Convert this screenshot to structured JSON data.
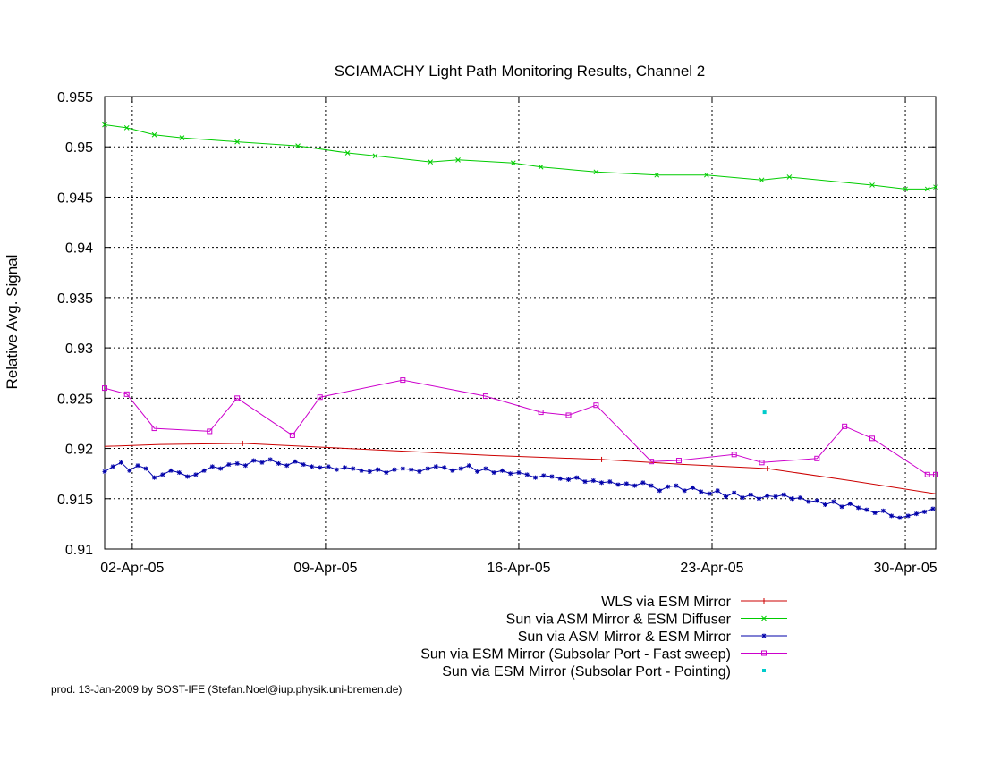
{
  "footer": "prod. 13-Jan-2009 by SOST-IFE (Stefan.Noel@iup.physik.uni-bremen.de)",
  "chart_data": {
    "type": "line",
    "title": "SCIAMACHY Light Path Monitoring Results, Channel 2",
    "xlabel": "",
    "ylabel": "Relative Avg. Signal",
    "x_unit": "date (April 2005, day of month)",
    "xlim": [
      1.0,
      31.1
    ],
    "ylim": [
      0.91,
      0.955
    ],
    "xticks": [
      {
        "value": 2,
        "label": "02-Apr-05"
      },
      {
        "value": 9,
        "label": "09-Apr-05"
      },
      {
        "value": 16,
        "label": "16-Apr-05"
      },
      {
        "value": 23,
        "label": "23-Apr-05"
      },
      {
        "value": 30,
        "label": "30-Apr-05"
      }
    ],
    "yticks": [
      {
        "value": 0.91,
        "label": "0.91"
      },
      {
        "value": 0.915,
        "label": "0.915"
      },
      {
        "value": 0.92,
        "label": "0.92"
      },
      {
        "value": 0.925,
        "label": "0.925"
      },
      {
        "value": 0.93,
        "label": "0.93"
      },
      {
        "value": 0.935,
        "label": "0.935"
      },
      {
        "value": 0.94,
        "label": "0.94"
      },
      {
        "value": 0.945,
        "label": "0.945"
      },
      {
        "value": 0.95,
        "label": "0.95"
      },
      {
        "value": 0.955,
        "label": "0.955"
      }
    ],
    "grid": true,
    "legend_position": "bottom",
    "series": [
      {
        "name": "WLS via ESM Mirror",
        "color": "#cc0000",
        "marker": "plus",
        "style": "line",
        "x": [
          1.0,
          3.0,
          6.0,
          9.0,
          12.0,
          15.0,
          19.0,
          22.0,
          25.0,
          28.0,
          31.1
        ],
        "y": [
          0.9202,
          0.9204,
          0.9205,
          0.9201,
          0.9197,
          0.9193,
          0.9189,
          0.9184,
          0.918,
          0.9168,
          0.9155
        ],
        "marked_x": [
          6.0,
          19.0,
          25.0
        ]
      },
      {
        "name": "Sun via ASM Mirror & ESM Diffuser",
        "color": "#00cc00",
        "marker": "x",
        "style": "linespoints",
        "x": [
          1.0,
          1.8,
          2.8,
          3.8,
          5.8,
          8.0,
          9.8,
          10.8,
          12.8,
          13.8,
          15.8,
          16.8,
          18.8,
          21.0,
          22.8,
          24.8,
          25.8,
          28.8,
          30.0,
          30.8,
          31.1
        ],
        "y": [
          0.9522,
          0.9519,
          0.9512,
          0.9509,
          0.9505,
          0.9501,
          0.9494,
          0.9491,
          0.9485,
          0.9487,
          0.9484,
          0.948,
          0.9475,
          0.9472,
          0.9472,
          0.9467,
          0.947,
          0.9462,
          0.9458,
          0.9458,
          0.946
        ]
      },
      {
        "name": "Sun via ASM Mirror & ESM Mirror",
        "color": "#0000aa",
        "marker": "star",
        "style": "linespoints",
        "x": [
          1.0,
          1.3,
          1.6,
          1.9,
          2.2,
          2.5,
          2.8,
          3.1,
          3.4,
          3.7,
          4.0,
          4.3,
          4.6,
          4.9,
          5.2,
          5.5,
          5.8,
          6.1,
          6.4,
          6.7,
          7.0,
          7.3,
          7.6,
          7.9,
          8.2,
          8.5,
          8.8,
          9.1,
          9.4,
          9.7,
          10.0,
          10.3,
          10.6,
          10.9,
          11.2,
          11.5,
          11.8,
          12.1,
          12.4,
          12.7,
          13.0,
          13.3,
          13.6,
          13.9,
          14.2,
          14.5,
          14.8,
          15.1,
          15.4,
          15.7,
          16.0,
          16.3,
          16.6,
          16.9,
          17.2,
          17.5,
          17.8,
          18.1,
          18.4,
          18.7,
          19.0,
          19.3,
          19.6,
          19.9,
          20.2,
          20.5,
          20.8,
          21.1,
          21.4,
          21.7,
          22.0,
          22.3,
          22.6,
          22.9,
          23.2,
          23.5,
          23.8,
          24.1,
          24.4,
          24.7,
          25.0,
          25.3,
          25.6,
          25.9,
          26.2,
          26.5,
          26.8,
          27.1,
          27.4,
          27.7,
          28.0,
          28.3,
          28.6,
          28.9,
          29.2,
          29.5,
          29.8,
          30.1,
          30.4,
          30.7,
          31.0
        ],
        "y": [
          0.9177,
          0.9182,
          0.9186,
          0.9178,
          0.9183,
          0.918,
          0.9171,
          0.9174,
          0.9178,
          0.9176,
          0.9172,
          0.9174,
          0.9178,
          0.9182,
          0.918,
          0.9184,
          0.9185,
          0.9183,
          0.9188,
          0.9186,
          0.9189,
          0.9185,
          0.9183,
          0.9187,
          0.9184,
          0.9182,
          0.9181,
          0.9182,
          0.9179,
          0.9181,
          0.918,
          0.9178,
          0.9177,
          0.9179,
          0.9176,
          0.9179,
          0.918,
          0.9179,
          0.9177,
          0.918,
          0.9182,
          0.9181,
          0.9178,
          0.918,
          0.9183,
          0.9177,
          0.918,
          0.9176,
          0.9178,
          0.9175,
          0.9176,
          0.9174,
          0.9171,
          0.9173,
          0.9172,
          0.917,
          0.9169,
          0.9171,
          0.9167,
          0.9168,
          0.9166,
          0.9167,
          0.9164,
          0.9165,
          0.9163,
          0.9166,
          0.9163,
          0.9158,
          0.9162,
          0.9163,
          0.9158,
          0.9161,
          0.9157,
          0.9155,
          0.9158,
          0.9152,
          0.9156,
          0.9151,
          0.9154,
          0.915,
          0.9153,
          0.9152,
          0.9154,
          0.915,
          0.9151,
          0.9147,
          0.9148,
          0.9144,
          0.9147,
          0.9142,
          0.9145,
          0.9141,
          0.9139,
          0.9136,
          0.9138,
          0.9133,
          0.9131,
          0.9133,
          0.9135,
          0.9137,
          0.914
        ]
      },
      {
        "name": "Sun via ESM Mirror (Subsolar Port - Fast sweep)",
        "color": "#cc00cc",
        "marker": "square",
        "style": "linespoints",
        "x": [
          1.0,
          1.8,
          2.8,
          4.8,
          5.8,
          7.8,
          8.8,
          11.8,
          14.8,
          16.8,
          17.8,
          18.8,
          20.8,
          21.8,
          23.8,
          24.8,
          26.8,
          27.8,
          28.8,
          30.8,
          31.1
        ],
        "y": [
          0.926,
          0.9254,
          0.922,
          0.9217,
          0.925,
          0.9213,
          0.9251,
          0.9268,
          0.9252,
          0.9236,
          0.9233,
          0.9243,
          0.9187,
          0.9188,
          0.9194,
          0.9186,
          0.919,
          0.9222,
          0.921,
          0.9174,
          0.9174
        ]
      },
      {
        "name": "Sun via ESM Mirror (Subsolar Port - Pointing)",
        "color": "#00cccc",
        "marker": "dot",
        "style": "points",
        "x": [
          24.9
        ],
        "y": [
          0.9236
        ]
      }
    ]
  }
}
